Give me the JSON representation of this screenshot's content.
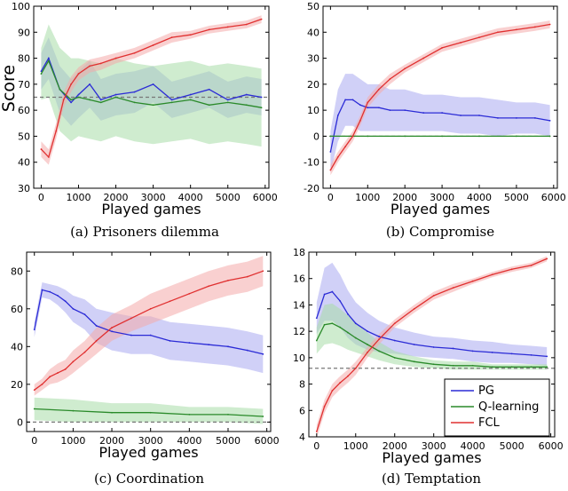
{
  "colors": {
    "PG": "#2b2bd6",
    "Q-learning": "#2a8a2a",
    "FCL": "#e03030",
    "PG_band": "#aaaaf0",
    "Q-learning_band": "#a8dca8",
    "FCL_band": "#f4a9a9",
    "ref": "#777777"
  },
  "legend": [
    "PG",
    "Q-learning",
    "FCL"
  ],
  "chart_data": [
    {
      "type": "line",
      "caption": "(a) Prisoners dilemma",
      "xlabel": "Played games",
      "ylabel": "Score",
      "xlim": [
        -200,
        6100
      ],
      "ylim": [
        30,
        100
      ],
      "xticks": [
        0,
        1000,
        2000,
        3000,
        4000,
        5000,
        6000
      ],
      "yticks": [
        30,
        40,
        50,
        60,
        70,
        80,
        90,
        100
      ],
      "reference_line": 65,
      "series": [
        {
          "name": "PG",
          "x": [
            0,
            200,
            500,
            800,
            1000,
            1300,
            1600,
            2000,
            2500,
            3000,
            3500,
            4000,
            4500,
            5000,
            5500,
            5900
          ],
          "y": [
            75,
            80,
            68,
            63,
            66,
            70,
            64,
            66,
            67,
            70,
            64,
            66,
            68,
            64,
            66,
            65
          ],
          "err": [
            7,
            8,
            9,
            9,
            9,
            9,
            8,
            8,
            8,
            7,
            7,
            7,
            7,
            7,
            7,
            7
          ]
        },
        {
          "name": "Q-learning",
          "x": [
            0,
            200,
            500,
            800,
            1000,
            1300,
            1600,
            2000,
            2500,
            3000,
            3500,
            4000,
            4500,
            5000,
            5500,
            5900
          ],
          "y": [
            74,
            79,
            68,
            64,
            65,
            64,
            63,
            65,
            63,
            62,
            63,
            64,
            62,
            63,
            62,
            61
          ],
          "err": [
            10,
            14,
            16,
            16,
            15,
            15,
            15,
            15,
            15,
            15,
            15,
            15,
            15,
            15,
            15,
            15
          ]
        },
        {
          "name": "FCL",
          "x": [
            0,
            200,
            400,
            600,
            800,
            1000,
            1300,
            1600,
            2000,
            2500,
            3000,
            3500,
            4000,
            4500,
            5000,
            5500,
            5900
          ],
          "y": [
            45,
            42,
            52,
            64,
            70,
            74,
            77,
            78,
            80,
            82,
            85,
            88,
            89,
            91,
            92,
            93,
            95
          ],
          "err": [
            3,
            3,
            3,
            3,
            3,
            2.5,
            2.5,
            2.5,
            2,
            2,
            2,
            2,
            1.5,
            1.5,
            1.5,
            1.5,
            1.5
          ]
        }
      ]
    },
    {
      "type": "line",
      "caption": "(b) Compromise",
      "xlabel": "Played games",
      "ylabel": "",
      "xlim": [
        -200,
        6100
      ],
      "ylim": [
        -20,
        50
      ],
      "xticks": [
        0,
        1000,
        2000,
        3000,
        4000,
        5000,
        6000
      ],
      "yticks": [
        -20,
        -10,
        0,
        10,
        20,
        30,
        40,
        50
      ],
      "reference_line": 0,
      "series": [
        {
          "name": "PG",
          "x": [
            0,
            200,
            400,
            600,
            800,
            1000,
            1300,
            1600,
            2000,
            2500,
            3000,
            3500,
            4000,
            4500,
            5000,
            5500,
            5900
          ],
          "y": [
            -6,
            8,
            14,
            14,
            12,
            11,
            11,
            10,
            10,
            9,
            9,
            8,
            8,
            7,
            7,
            7,
            6
          ],
          "err": [
            8,
            10,
            10,
            10,
            10,
            9,
            9,
            8,
            8,
            7,
            7,
            7,
            7,
            7,
            6,
            6,
            6
          ]
        },
        {
          "name": "Q-learning",
          "x": [
            0,
            1000,
            2000,
            3000,
            4000,
            5000,
            5900
          ],
          "y": [
            0,
            0,
            0,
            0,
            0,
            0,
            0
          ],
          "err": [
            0.2,
            0.2,
            0.2,
            0.2,
            0.2,
            0.2,
            0.2
          ]
        },
        {
          "name": "FCL",
          "x": [
            0,
            200,
            400,
            600,
            800,
            1000,
            1300,
            1600,
            2000,
            2500,
            3000,
            3500,
            4000,
            4500,
            5000,
            5500,
            5900
          ],
          "y": [
            -13,
            -8,
            -4,
            0,
            6,
            13,
            18,
            22,
            26,
            30,
            34,
            36,
            38,
            40,
            41,
            42,
            43
          ],
          "err": [
            2,
            2,
            2,
            2,
            2,
            2,
            2,
            2,
            1.5,
            1.5,
            1.5,
            1.5,
            1.5,
            1.5,
            1.5,
            1.5,
            1.5
          ]
        }
      ]
    },
    {
      "type": "line",
      "caption": "(c) Coordination",
      "xlabel": "Played games",
      "ylabel": "",
      "xlim": [
        -200,
        6100
      ],
      "ylim": [
        -5,
        90
      ],
      "xticks": [
        0,
        1000,
        2000,
        3000,
        4000,
        5000,
        6000
      ],
      "yticks": [
        0,
        20,
        40,
        60,
        80
      ],
      "reference_line": 0,
      "series": [
        {
          "name": "PG",
          "x": [
            0,
            200,
            400,
            600,
            800,
            1000,
            1300,
            1600,
            2000,
            2500,
            3000,
            3500,
            4000,
            4500,
            5000,
            5500,
            5900
          ],
          "y": [
            49,
            70,
            69,
            67,
            64,
            60,
            57,
            51,
            48,
            46,
            46,
            43,
            42,
            41,
            40,
            38,
            36
          ],
          "err": [
            4,
            4,
            4,
            5,
            6,
            7,
            8,
            9,
            10,
            10,
            10,
            10,
            10,
            10,
            10,
            10,
            10
          ]
        },
        {
          "name": "Q-learning",
          "x": [
            0,
            1000,
            2000,
            3000,
            4000,
            5000,
            5900
          ],
          "y": [
            7,
            6,
            5,
            5,
            4,
            4,
            3
          ],
          "err": [
            6,
            6,
            5,
            5,
            4,
            4,
            4
          ]
        },
        {
          "name": "FCL",
          "x": [
            0,
            200,
            400,
            600,
            800,
            1000,
            1300,
            1600,
            2000,
            2500,
            3000,
            3500,
            4000,
            4500,
            5000,
            5500,
            5900
          ],
          "y": [
            17,
            20,
            24,
            26,
            28,
            32,
            37,
            43,
            50,
            55,
            60,
            64,
            68,
            72,
            75,
            77,
            80
          ],
          "err": [
            3,
            3,
            4,
            5,
            5,
            6,
            6,
            7,
            7,
            7,
            8,
            8,
            8,
            8,
            8,
            8,
            8
          ]
        }
      ]
    },
    {
      "type": "line",
      "caption": "(d) Temptation",
      "xlabel": "Played games",
      "ylabel": "",
      "xlim": [
        -200,
        6100
      ],
      "ylim": [
        4,
        18
      ],
      "xticks": [
        0,
        1000,
        2000,
        3000,
        4000,
        5000,
        6000
      ],
      "yticks": [
        4,
        6,
        8,
        10,
        12,
        14,
        16,
        18
      ],
      "reference_line": 9.2,
      "series": [
        {
          "name": "PG",
          "x": [
            0,
            200,
            400,
            600,
            800,
            1000,
            1300,
            1600,
            2000,
            2500,
            3000,
            3500,
            4000,
            4500,
            5000,
            5500,
            5900
          ],
          "y": [
            13.0,
            14.8,
            15.0,
            14.3,
            13.3,
            12.6,
            12.0,
            11.6,
            11.3,
            11.0,
            10.8,
            10.7,
            10.5,
            10.4,
            10.3,
            10.2,
            10.1
          ],
          "err": [
            1.2,
            2.0,
            2.2,
            2.0,
            1.8,
            1.6,
            1.4,
            1.2,
            1.0,
            0.9,
            0.8,
            0.8,
            0.8,
            0.8,
            0.7,
            0.7,
            0.7
          ]
        },
        {
          "name": "Q-learning",
          "x": [
            0,
            200,
            400,
            600,
            800,
            1000,
            1300,
            1600,
            2000,
            2500,
            3000,
            3500,
            4000,
            4500,
            5000,
            5500,
            5900
          ],
          "y": [
            11.3,
            12.5,
            12.6,
            12.3,
            11.9,
            11.5,
            11.0,
            10.5,
            10.0,
            9.7,
            9.5,
            9.4,
            9.4,
            9.3,
            9.3,
            9.3,
            9.3
          ],
          "err": [
            1.0,
            1.5,
            1.5,
            1.4,
            1.3,
            1.1,
            0.9,
            0.7,
            0.5,
            0.4,
            0.3,
            0.3,
            0.3,
            0.2,
            0.2,
            0.2,
            0.2
          ]
        },
        {
          "name": "FCL",
          "x": [
            0,
            200,
            400,
            600,
            800,
            1000,
            1300,
            1600,
            2000,
            2500,
            3000,
            3500,
            4000,
            4500,
            5000,
            5500,
            5900
          ],
          "y": [
            4.4,
            6.3,
            7.5,
            8.1,
            8.6,
            9.2,
            10.4,
            11.4,
            12.6,
            13.7,
            14.7,
            15.3,
            15.8,
            16.3,
            16.7,
            17.0,
            17.5
          ],
          "err": [
            0.5,
            0.5,
            0.5,
            0.5,
            0.5,
            0.5,
            0.4,
            0.4,
            0.3,
            0.3,
            0.3,
            0.3,
            0.2,
            0.2,
            0.2,
            0.2,
            0.2
          ]
        }
      ]
    }
  ]
}
